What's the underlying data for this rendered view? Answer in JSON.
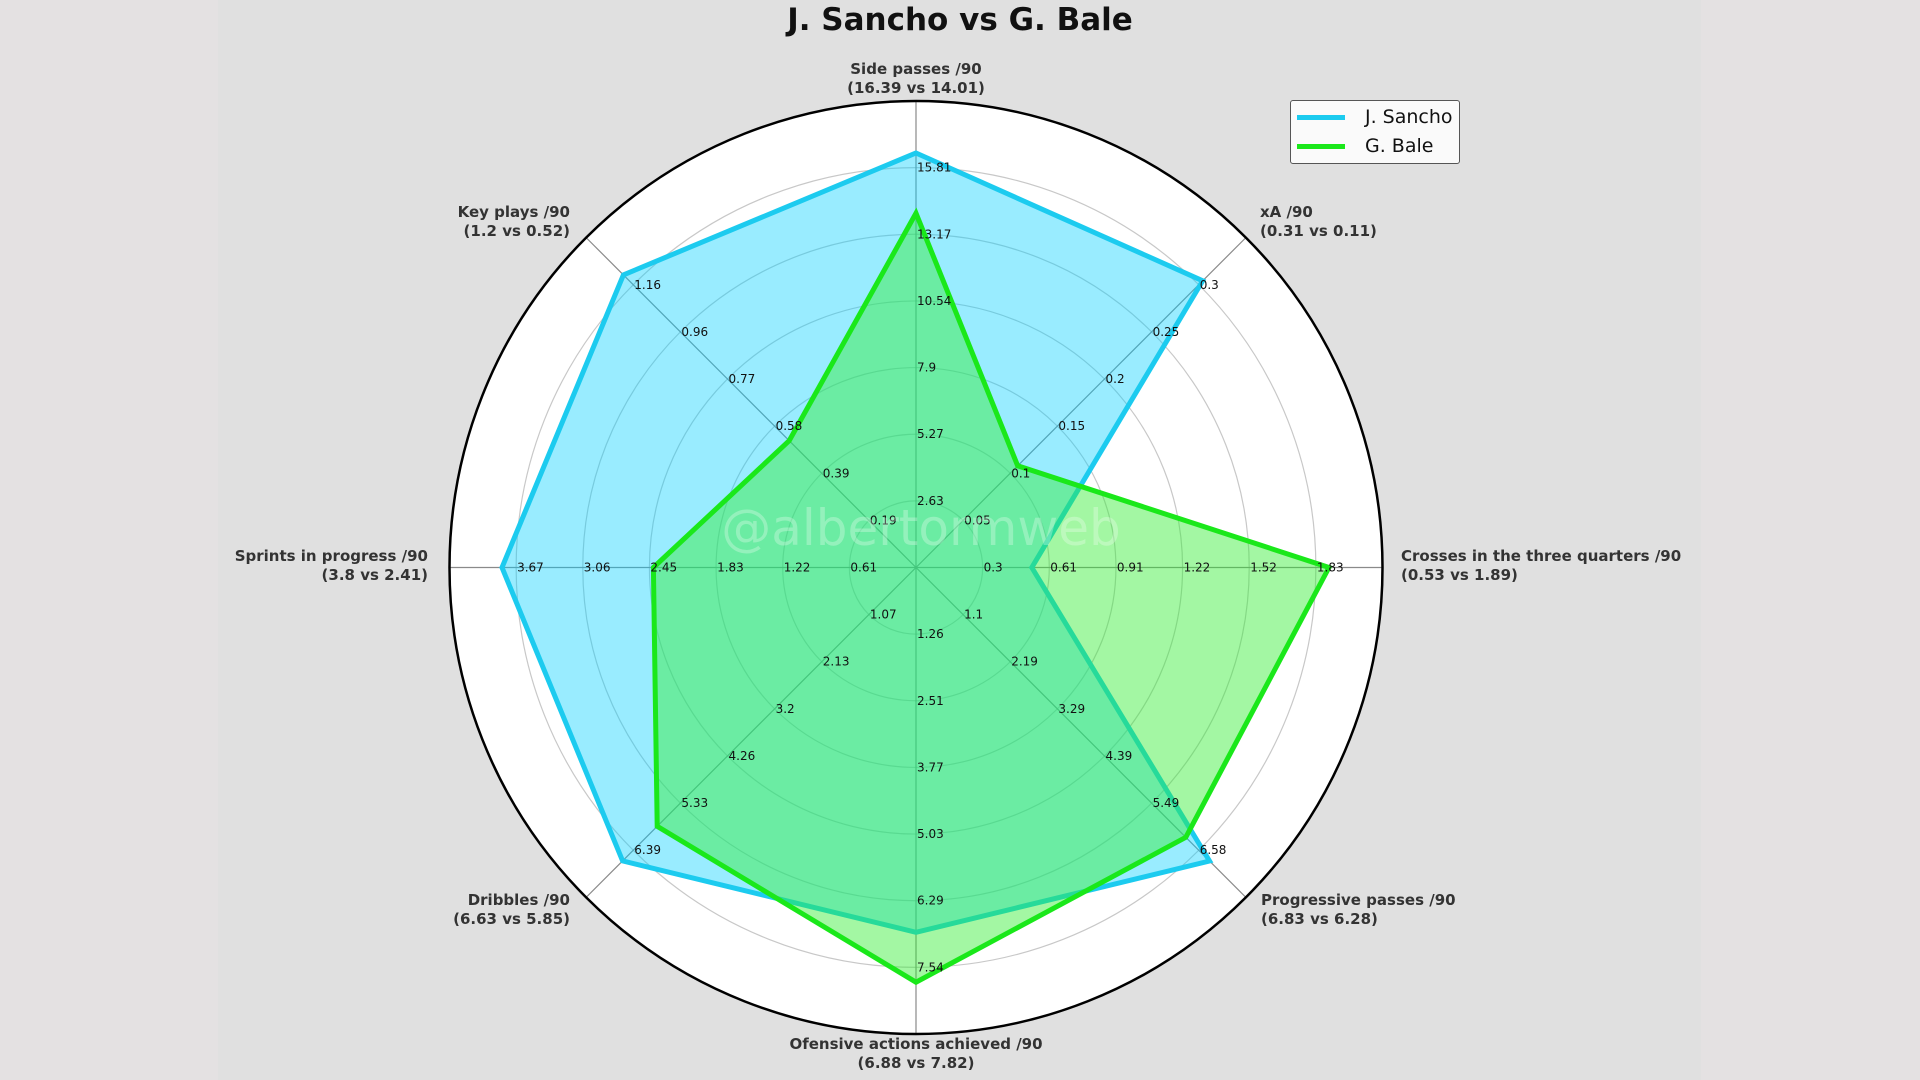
{
  "title": "J. Sancho vs G. Bale",
  "watermark": "@albertormweb",
  "legend": {
    "items": [
      {
        "label": "J. Sancho",
        "color": "#1ccbef"
      },
      {
        "label": "G. Bale",
        "color": "#1ae81a"
      }
    ]
  },
  "colors": {
    "sancho_line": "#1ccbef",
    "sancho_fill": "#00d0ff",
    "bale_line": "#1ae81a",
    "bale_fill": "#33ee33",
    "figure_bg": "#e0e0e0",
    "page_bg": "#e4e1e2"
  },
  "axis_labels": [
    {
      "name": "Side passes /90",
      "values": "(16.39 vs 14.01)"
    },
    {
      "name": "xA /90",
      "values": "(0.31 vs 0.11)"
    },
    {
      "name": "Crosses in the three quarters /90",
      "values": "(0.53 vs 1.89)"
    },
    {
      "name": "Progressive passes /90",
      "values": "(6.83 vs 6.28)"
    },
    {
      "name": "Ofensive actions achieved /90",
      "values": "(6.88 vs 7.82)"
    },
    {
      "name": "Dribbles /90",
      "values": "(6.63 vs 5.85)"
    },
    {
      "name": "Sprints in progress /90",
      "values": "(3.8 vs 2.41)"
    },
    {
      "name": "Key plays /90",
      "values": "(1.2 vs 0.52)"
    }
  ],
  "chart_data": {
    "type": "radar",
    "title": "J. Sancho vs G. Bale",
    "categories": [
      "Side passes /90",
      "xA /90",
      "Crosses in the three quarters /90",
      "Progressive passes /90",
      "Ofensive actions achieved /90",
      "Dribbles /90",
      "Sprints in progress /90",
      "Key plays /90"
    ],
    "series": [
      {
        "name": "J. Sancho",
        "values": [
          16.39,
          0.31,
          0.53,
          6.83,
          6.88,
          6.63,
          3.8,
          1.2
        ]
      },
      {
        "name": "G. Bale",
        "values": [
          14.01,
          0.11,
          1.89,
          6.28,
          7.82,
          5.85,
          2.41,
          0.52
        ]
      }
    ],
    "axis_max": [
      18.445,
      0.3567,
      2.135,
      7.677,
      8.797,
      7.455,
      4.282,
      1.353
    ],
    "ticks": [
      [
        "2.63",
        "5.27",
        "7.9",
        "10.54",
        "13.17",
        "15.81"
      ],
      [
        "0.05",
        "0.1",
        "0.15",
        "0.2",
        "0.25",
        "0.3"
      ],
      [
        "0.3",
        "0.61",
        "0.91",
        "1.22",
        "1.52",
        "1.83"
      ],
      [
        "1.1",
        "2.19",
        "3.29",
        "4.39",
        "5.49",
        "6.58"
      ],
      [
        "1.26",
        "2.51",
        "3.77",
        "5.03",
        "6.29",
        "7.54"
      ],
      [
        "1.07",
        "2.13",
        "3.2",
        "4.26",
        "5.33",
        "6.39"
      ],
      [
        "0.61",
        "1.22",
        "1.83",
        "2.45",
        "3.06",
        "3.67"
      ],
      [
        "0.19",
        "0.39",
        "0.58",
        "0.77",
        "0.96",
        "1.16"
      ]
    ],
    "grid": true,
    "rings": 7,
    "legend_position": "upper right"
  }
}
